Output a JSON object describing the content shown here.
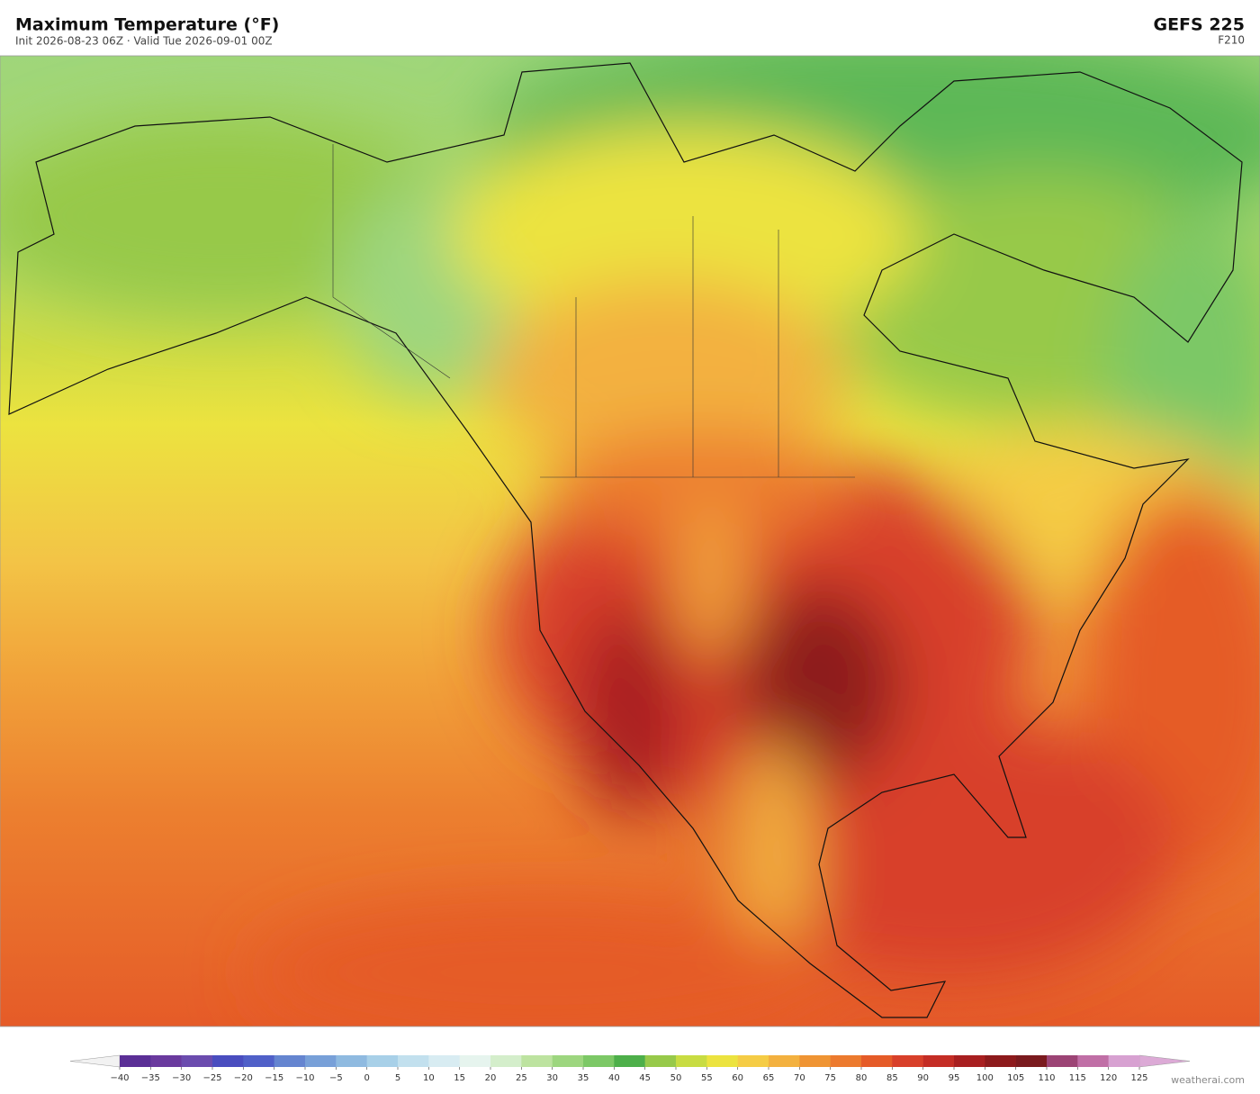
{
  "header": {
    "title": "Maximum Temperature  (°F)",
    "subtitle": "Init 2026-08-23 06Z  ·  Valid Tue 2026-09-01 00Z",
    "model": "GEFS  225",
    "forecast_hour": "F210"
  },
  "colorbar": {
    "ticks": [
      {
        "value": -40,
        "label": "−40"
      },
      {
        "value": -35,
        "label": "−35"
      },
      {
        "value": -30,
        "label": "−30"
      },
      {
        "value": -25,
        "label": "−25"
      },
      {
        "value": -20,
        "label": "−20"
      },
      {
        "value": -15,
        "label": "−15"
      },
      {
        "value": -10,
        "label": "−10"
      },
      {
        "value": -5,
        "label": "−5"
      },
      0,
      5,
      10,
      15,
      20,
      25,
      30,
      35,
      40,
      45,
      50,
      55,
      60,
      65,
      70,
      75,
      80,
      85,
      90,
      95,
      100,
      105,
      110,
      115,
      120,
      125
    ],
    "colors": [
      "#5b2f96",
      "#6a3a9e",
      "#6b4cae",
      "#4a4dbf",
      "#5060c8",
      "#6585d0",
      "#78a0d8",
      "#8fbae0",
      "#a8d0e8",
      "#c2e0ee",
      "#d8ecf2",
      "#e6f4ee",
      "#d4eecb",
      "#bde3a0",
      "#9dd67f",
      "#7cc866",
      "#4daf4a",
      "#97c94a",
      "#c8dc42",
      "#ece33f",
      "#f5cc45",
      "#f3b13f",
      "#ef9433",
      "#ec7a2e",
      "#e55b28",
      "#d8402a",
      "#c42d25",
      "#a81f20",
      "#8d1a1c",
      "#7a1a1e",
      "#9c4475",
      "#c06fa6",
      "#d7a1d1"
    ],
    "under_color": "#f2f2f2",
    "over_color": "#dcaad6"
  },
  "footer": {
    "credit": "weatherai.com"
  }
}
